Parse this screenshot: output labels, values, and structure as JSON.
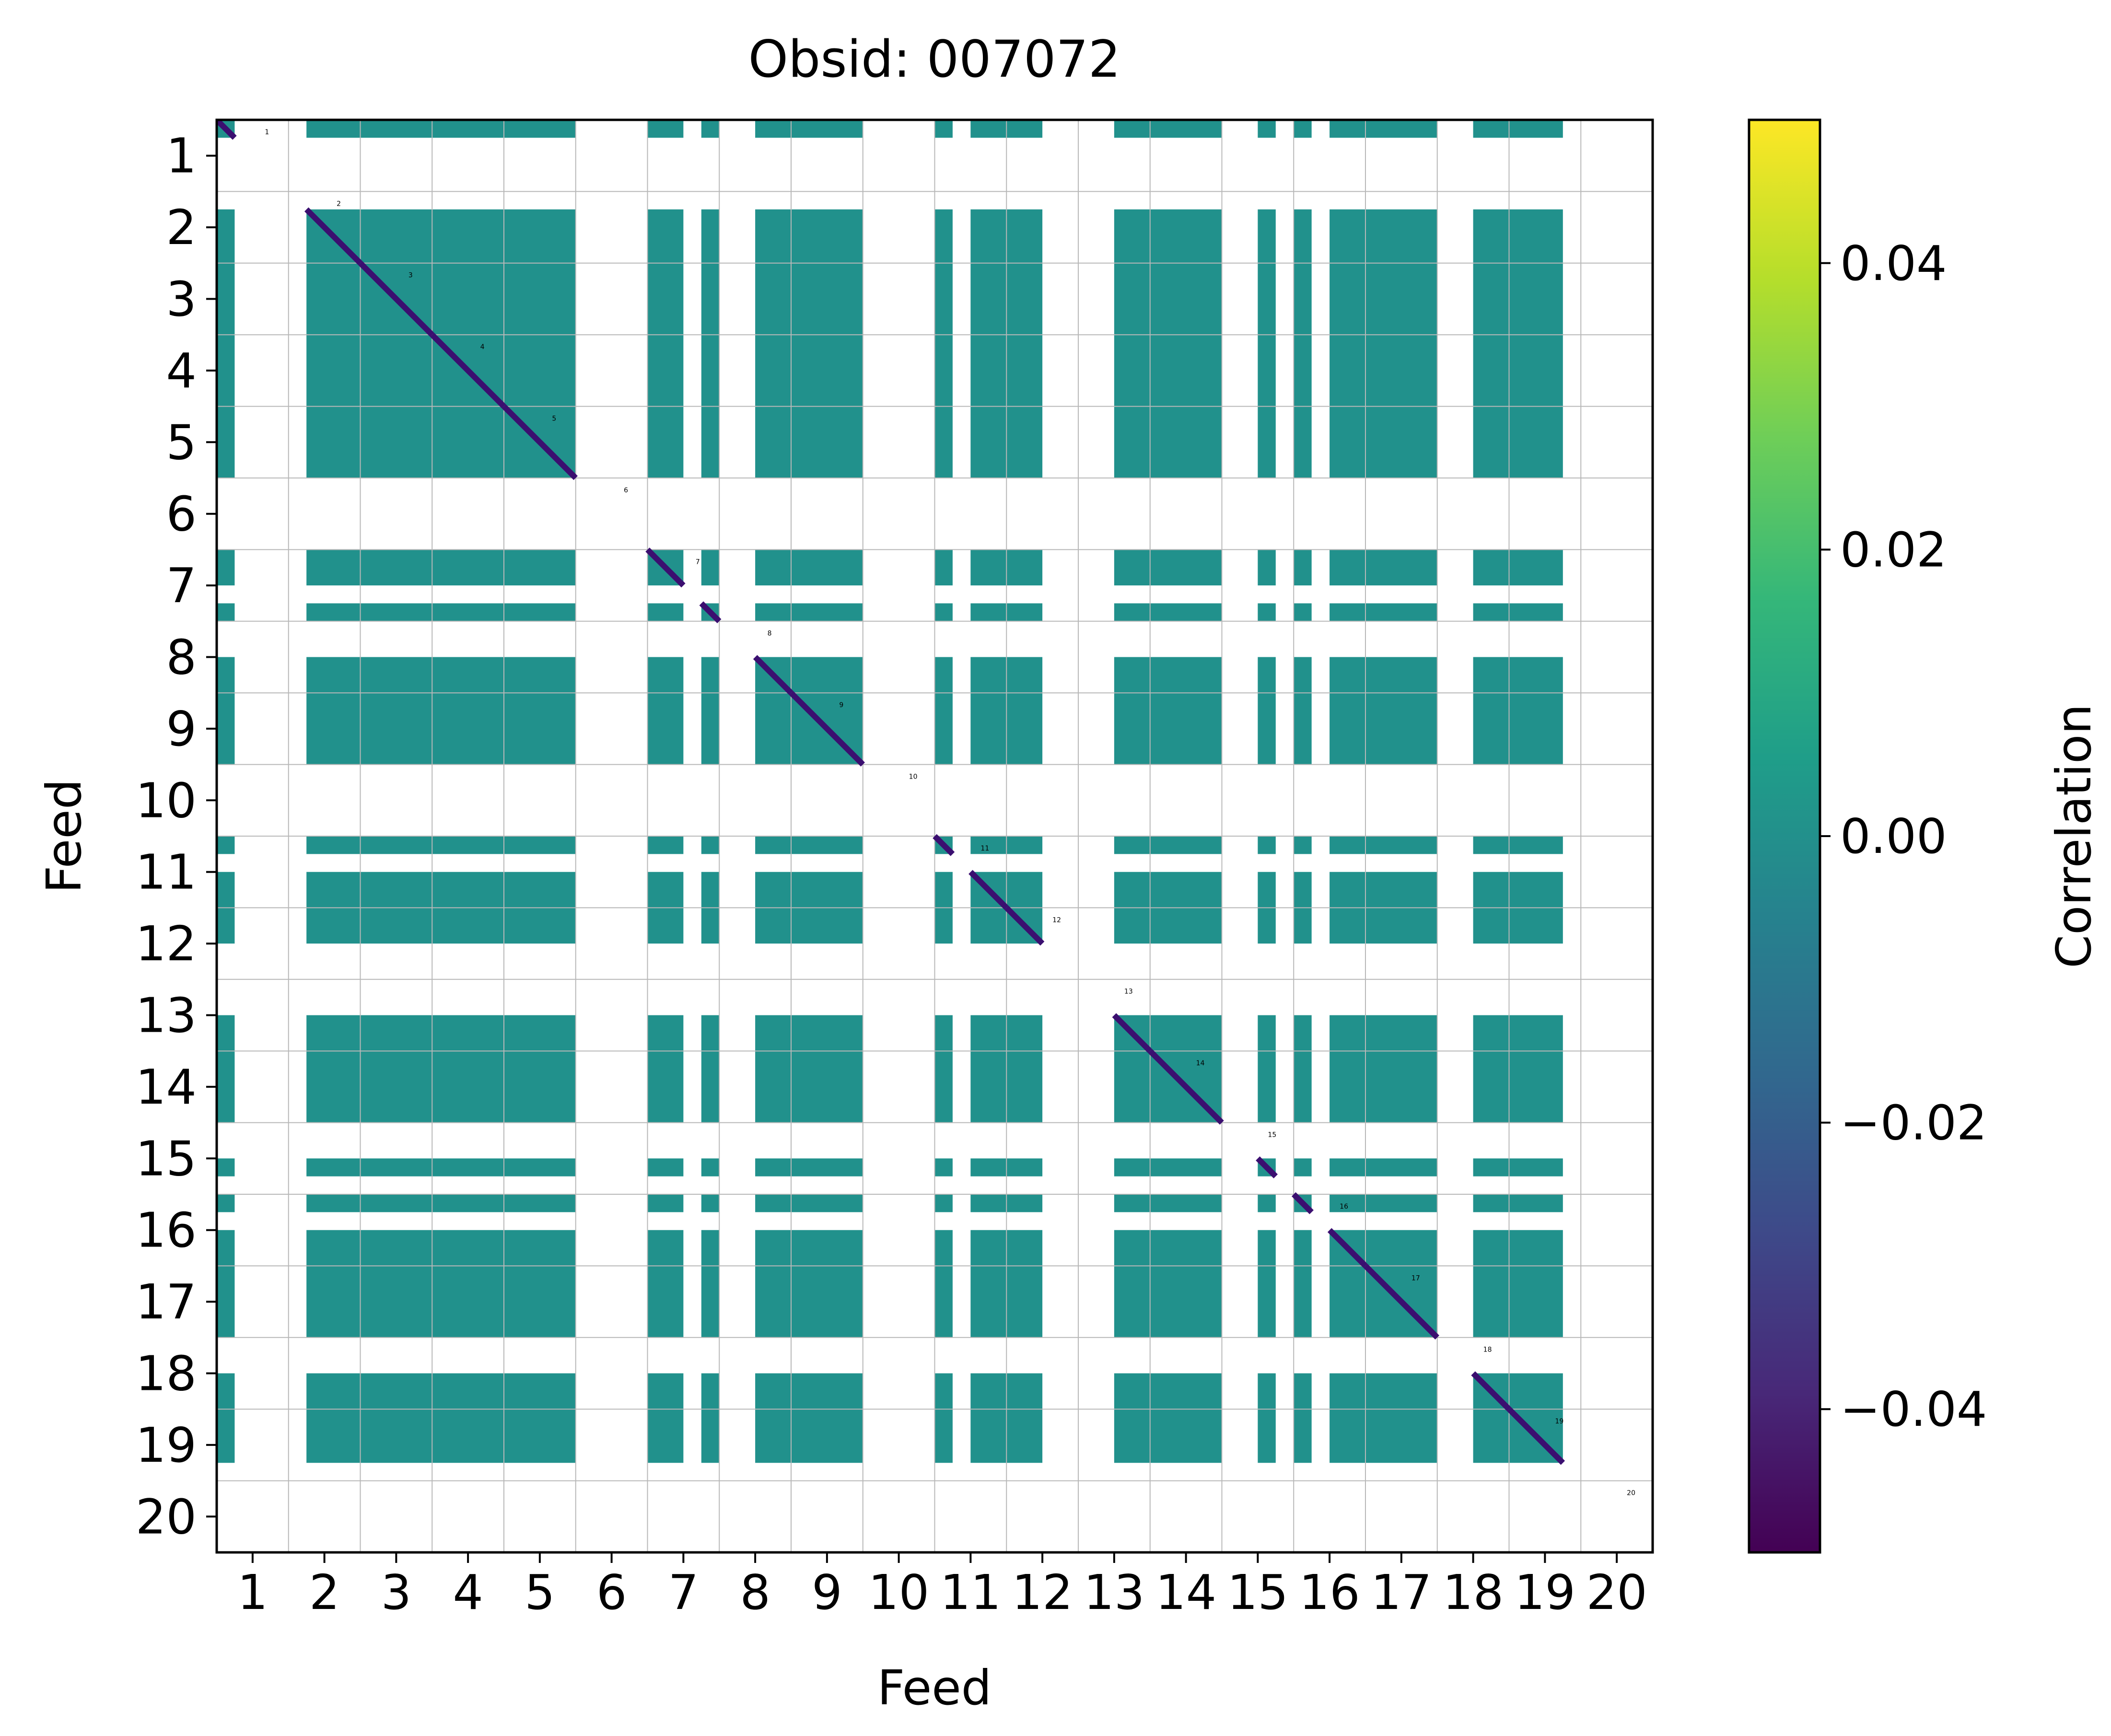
{
  "chart_data": {
    "type": "heatmap",
    "title": "Obsid: 007072",
    "xlabel": "Feed",
    "ylabel": "Feed",
    "x_tick_labels": [
      "1",
      "2",
      "3",
      "4",
      "5",
      "6",
      "7",
      "8",
      "9",
      "10",
      "11",
      "12",
      "13",
      "14",
      "15",
      "16",
      "17",
      "18",
      "19",
      "20"
    ],
    "y_tick_labels": [
      "1",
      "2",
      "3",
      "4",
      "5",
      "6",
      "7",
      "8",
      "9",
      "10",
      "11",
      "12",
      "13",
      "14",
      "15",
      "16",
      "17",
      "18",
      "19",
      "20"
    ],
    "feeds": [
      1,
      2,
      3,
      4,
      5,
      6,
      7,
      8,
      9,
      10,
      11,
      12,
      13,
      14,
      15,
      16,
      17,
      18,
      19,
      20
    ],
    "diagonal_labels": [
      "1",
      "2",
      "3",
      "4",
      "5",
      "6",
      "7",
      "8",
      "9",
      "10",
      "11",
      "12",
      "13",
      "14",
      "15",
      "16",
      "17",
      "18",
      "19",
      "20"
    ],
    "active_feeds": [
      1,
      2,
      3,
      4,
      5,
      7,
      8,
      9,
      11,
      12,
      13,
      14,
      15,
      16,
      17,
      18,
      19
    ],
    "masked_feeds": [
      6,
      10,
      20
    ],
    "band_coverage": {
      "1": [
        0.0,
        0.25,
        0.25,
        0.25,
        0.25,
        0.25
      ],
      "2": [
        0.25,
        1.0
      ],
      "3": [
        0.0,
        1.0
      ],
      "4": [
        0.0,
        1.0
      ],
      "5": [
        0.0,
        1.0
      ],
      "6": [],
      "7": [
        0.0,
        0.5,
        0.75,
        1.0
      ],
      "8": [
        0.5,
        1.0
      ],
      "9": [
        0.0,
        1.0
      ],
      "10": [],
      "11": [
        0.0,
        0.25,
        0.5,
        1.0
      ],
      "12": [
        0.0,
        0.5
      ],
      "13": [
        0.5,
        1.0
      ],
      "14": [
        0.0,
        1.0
      ],
      "15": [
        0.5,
        0.75
      ],
      "16": [
        0.0,
        0.25,
        0.5,
        1.0
      ],
      "17": [
        0.0,
        1.0
      ],
      "18": [
        0.5,
        1.0
      ],
      "19": [
        0.0,
        0.75
      ],
      "20": []
    },
    "background_value": 0.0,
    "diagonal_value": -0.05,
    "colorbar": {
      "label": "Correlation",
      "vmin": -0.05,
      "vmax": 0.05,
      "ticks": [
        -0.04,
        -0.02,
        0.0,
        0.02,
        0.04
      ],
      "tick_labels": [
        "−0.04",
        "−0.02",
        "0.00",
        "0.02",
        "0.04"
      ],
      "colormap": "viridis"
    },
    "grid": true
  },
  "colors": {
    "cell": "#21918c",
    "diagonal": "#3b0f70",
    "grid": "#b8b8b8",
    "masked": "#ffffff",
    "viridis_stops": [
      "#440154",
      "#482878",
      "#3e4989",
      "#31688e",
      "#26828e",
      "#1f9e89",
      "#35b779",
      "#6ece58",
      "#b5de2b",
      "#fde725"
    ]
  }
}
